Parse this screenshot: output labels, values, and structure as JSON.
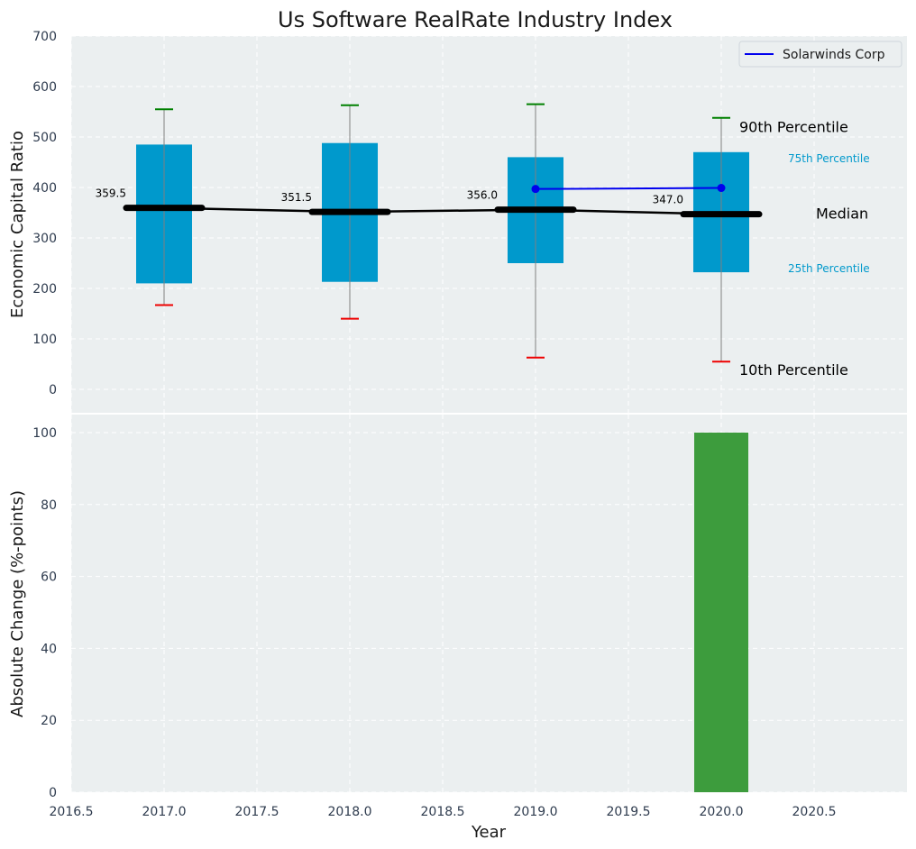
{
  "chart_data": [
    {
      "type": "box",
      "title": "Us Software RealRate Industry Index",
      "ylabel": "Economic Capital Ratio",
      "ylim": [
        -50,
        700
      ],
      "yticks": [
        0,
        100,
        200,
        300,
        400,
        500,
        600,
        700
      ],
      "xlim": [
        2016.5,
        2020.5
      ],
      "grid": true,
      "legend": {
        "position": "top-right",
        "entries": [
          "Solarwinds Corp"
        ]
      },
      "boxes": [
        {
          "x": 2017,
          "p10": 167,
          "p25": 210,
          "median": 359.5,
          "p75": 485,
          "p90": 555,
          "label": "359.5"
        },
        {
          "x": 2018,
          "p10": 140,
          "p25": 213,
          "median": 351.5,
          "p75": 488,
          "p90": 563,
          "label": "351.5"
        },
        {
          "x": 2019,
          "p10": 63,
          "p25": 250,
          "median": 356.0,
          "p75": 460,
          "p90": 565,
          "label": "356.0"
        },
        {
          "x": 2020,
          "p10": 55,
          "p25": 232,
          "median": 347.0,
          "p75": 470,
          "p90": 538,
          "label": "347.0"
        }
      ],
      "series": [
        {
          "name": "Solarwinds Corp",
          "x": [
            2019,
            2020
          ],
          "values": [
            397,
            399
          ],
          "color": "#0000ee"
        }
      ],
      "reference_labels": {
        "p90": "90th Percentile",
        "p75": "75th Percentile",
        "median": "Median",
        "p25": "25th Percentile",
        "p10": "10th Percentile"
      }
    },
    {
      "type": "bar",
      "ylabel": "Absolute Change (%-points)",
      "xlabel": "Year",
      "ylim": [
        0,
        105
      ],
      "yticks": [
        0,
        20,
        40,
        60,
        80,
        100
      ],
      "xlim": [
        2016.5,
        2021
      ],
      "xticks": [
        "2016.5",
        "2017.0",
        "2017.5",
        "2018.0",
        "2018.5",
        "2019.0",
        "2019.5",
        "2020.0",
        "2020.5"
      ],
      "grid": true,
      "bars": [
        {
          "x": 2020,
          "value": 100,
          "color": "#3d9c3d"
        }
      ]
    }
  ],
  "colors": {
    "panel_bg": "#ebeff0",
    "box": "#0099cc",
    "median": "#000000",
    "p90_cap": "#008000",
    "p10_cap": "#ee0000",
    "whisker": "#808080",
    "bar": "#3d9c3d"
  }
}
